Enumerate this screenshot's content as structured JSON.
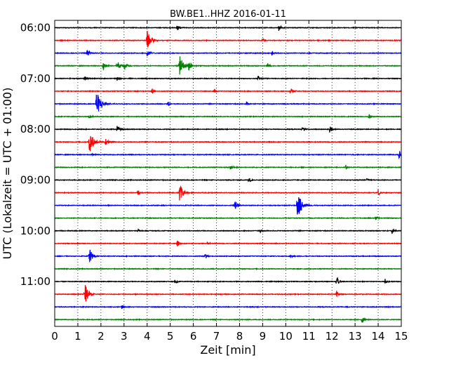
{
  "chart_data": {
    "type": "line",
    "title": "BW.BE1..HHZ 2016-01-11",
    "xlabel": "Zeit  [min]",
    "ylabel": "UTC (Lokalzeit = UTC + 01:00)",
    "xlim": [
      0,
      15
    ],
    "x_ticks": [
      "0",
      "1",
      "2",
      "3",
      "4",
      "5",
      "6",
      "7",
      "8",
      "9",
      "10",
      "11",
      "12",
      "13",
      "14",
      "15"
    ],
    "y_ticks": [
      "06:00",
      "07:00",
      "08:00",
      "09:00",
      "10:00",
      "11:00"
    ],
    "grid": "vertical dotted at each minute",
    "trace_colors": [
      "#000000",
      "#ff0000",
      "#0000ff",
      "#008000"
    ],
    "start_time": "06:00",
    "row_interval_min": 15,
    "series": [
      {
        "time": "06:00",
        "color": "#000000",
        "events": [
          [
            5.3,
            5
          ],
          [
            9.7,
            5
          ]
        ]
      },
      {
        "time": "06:15",
        "color": "#ff0000",
        "events": [
          [
            4.0,
            14
          ],
          [
            9.0,
            4
          ]
        ]
      },
      {
        "time": "06:30",
        "color": "#0000ff",
        "events": [
          [
            1.4,
            6
          ],
          [
            4.0,
            6
          ],
          [
            9.4,
            4
          ]
        ]
      },
      {
        "time": "06:45",
        "color": "#008000",
        "events": [
          [
            2.1,
            6
          ],
          [
            2.7,
            10
          ],
          [
            3.0,
            8
          ],
          [
            5.4,
            16
          ],
          [
            5.8,
            8
          ],
          [
            9.2,
            5
          ]
        ]
      },
      {
        "time": "07:00",
        "color": "#000000",
        "events": [
          [
            1.3,
            4
          ],
          [
            2.7,
            3
          ],
          [
            8.8,
            5
          ]
        ]
      },
      {
        "time": "07:15",
        "color": "#ff0000",
        "events": [
          [
            4.2,
            5
          ],
          [
            6.9,
            4
          ],
          [
            10.2,
            6
          ]
        ]
      },
      {
        "time": "07:30",
        "color": "#0000ff",
        "events": [
          [
            1.8,
            20
          ],
          [
            4.9,
            4
          ],
          [
            8.3,
            4
          ]
        ]
      },
      {
        "time": "07:45",
        "color": "#008000",
        "events": [
          [
            1.5,
            4
          ],
          [
            13.6,
            5
          ]
        ]
      },
      {
        "time": "08:00",
        "color": "#000000",
        "events": [
          [
            2.7,
            5
          ],
          [
            10.7,
            5
          ],
          [
            11.9,
            6
          ]
        ]
      },
      {
        "time": "08:15",
        "color": "#ff0000",
        "events": [
          [
            1.5,
            18
          ],
          [
            2.2,
            8
          ]
        ]
      },
      {
        "time": "08:30",
        "color": "#0000ff",
        "events": [
          [
            1.6,
            3
          ],
          [
            14.9,
            6
          ]
        ]
      },
      {
        "time": "08:45",
        "color": "#008000",
        "events": [
          [
            7.6,
            7
          ],
          [
            12.6,
            4
          ]
        ]
      },
      {
        "time": "09:00",
        "color": "#000000",
        "events": [
          [
            8.4,
            5
          ],
          [
            13.5,
            4
          ]
        ]
      },
      {
        "time": "09:15",
        "color": "#ff0000",
        "events": [
          [
            3.6,
            4
          ],
          [
            5.4,
            14
          ],
          [
            14.0,
            5
          ]
        ]
      },
      {
        "time": "09:30",
        "color": "#0000ff",
        "events": [
          [
            7.8,
            8
          ],
          [
            10.5,
            20
          ]
        ]
      },
      {
        "time": "09:45",
        "color": "#008000",
        "events": [
          [
            13.9,
            4
          ]
        ]
      },
      {
        "time": "10:00",
        "color": "#000000",
        "events": [
          [
            3.6,
            3
          ],
          [
            8.9,
            4
          ],
          [
            14.6,
            5
          ]
        ]
      },
      {
        "time": "10:15",
        "color": "#ff0000",
        "events": [
          [
            5.3,
            5
          ],
          [
            6.6,
            3
          ]
        ]
      },
      {
        "time": "10:30",
        "color": "#0000ff",
        "events": [
          [
            1.5,
            12
          ],
          [
            6.5,
            5
          ],
          [
            10.2,
            4
          ]
        ]
      },
      {
        "time": "10:45",
        "color": "#008000",
        "events": []
      },
      {
        "time": "11:00",
        "color": "#000000",
        "events": [
          [
            5.2,
            5
          ],
          [
            12.2,
            8
          ],
          [
            14.3,
            4
          ]
        ]
      },
      {
        "time": "11:15",
        "color": "#ff0000",
        "events": [
          [
            1.3,
            16
          ],
          [
            12.2,
            5
          ]
        ]
      },
      {
        "time": "11:30",
        "color": "#0000ff",
        "events": [
          [
            2.9,
            3
          ]
        ]
      },
      {
        "time": "11:45",
        "color": "#008000",
        "events": [
          [
            13.3,
            6
          ]
        ]
      }
    ]
  }
}
